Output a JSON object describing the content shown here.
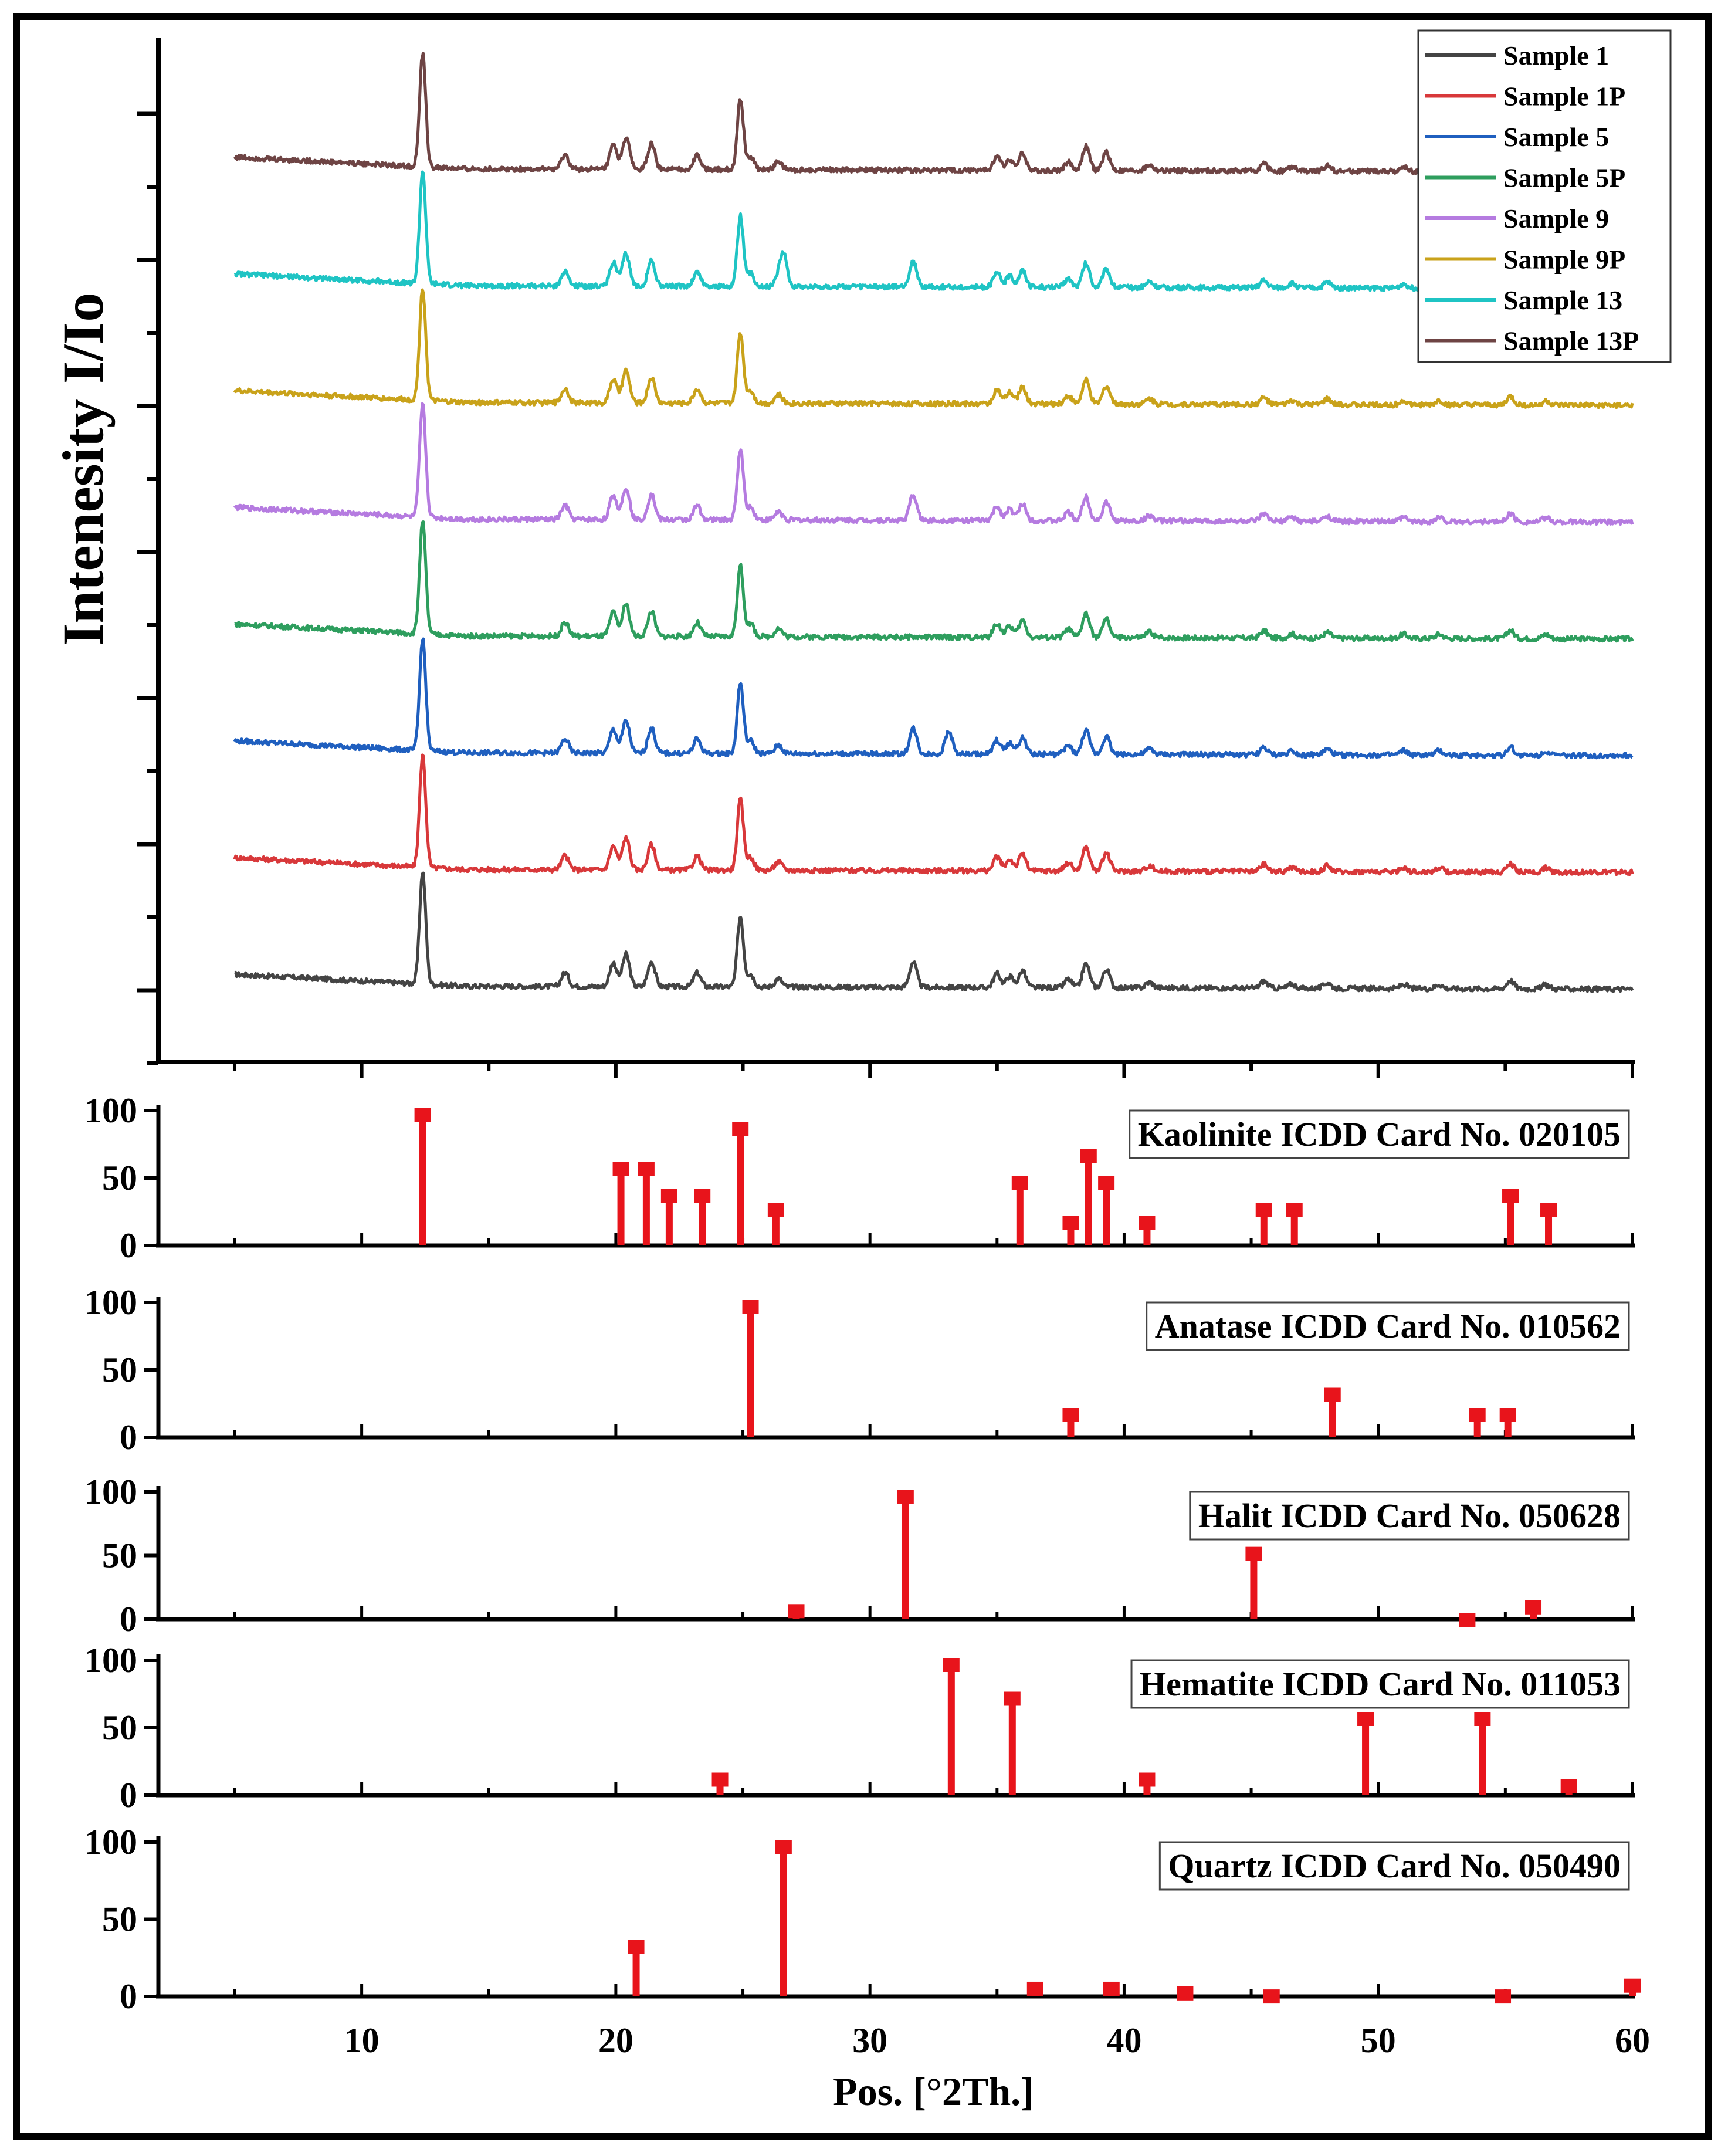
{
  "chart_data": [
    {
      "type": "line",
      "title": "",
      "ylabel": "Intenesity  I/Io",
      "xlabel": "",
      "xlim": [
        2,
        60
      ],
      "legend_position": "top-right",
      "peaks_common": [
        [
          12.4,
          8.0
        ],
        [
          18.0,
          1.0
        ],
        [
          19.9,
          1.7
        ],
        [
          20.4,
          2.3
        ],
        [
          21.4,
          1.8
        ],
        [
          23.2,
          1.0
        ],
        [
          24.9,
          5.0
        ],
        [
          25.3,
          0.9
        ],
        [
          26.4,
          0.6
        ],
        [
          35.0,
          1.0
        ],
        [
          35.5,
          0.8
        ],
        [
          36.0,
          1.2
        ],
        [
          37.8,
          0.6
        ],
        [
          38.5,
          1.7
        ],
        [
          39.3,
          1.3
        ],
        [
          41.0,
          0.4
        ],
        [
          45.5,
          0.5
        ],
        [
          46.6,
          0.3
        ],
        [
          48.0,
          0.4
        ],
        [
          51.0,
          0.3
        ],
        [
          52.4,
          0.3
        ],
        [
          55.2,
          0.6
        ],
        [
          56.6,
          0.3
        ]
      ],
      "series": [
        {
          "name": "Sample 1",
          "color": "#444444",
          "offset": 0,
          "x_end": 60,
          "extra_peaks": [
            [
              31.7,
              1.8
            ]
          ]
        },
        {
          "name": "Sample 1P",
          "color": "#d8383a",
          "offset": 1,
          "x_end": 60,
          "extra_peaks": []
        },
        {
          "name": "Sample 5",
          "color": "#1f5fbf",
          "offset": 2,
          "x_end": 60,
          "extra_peaks": [
            [
              31.7,
              1.8
            ],
            [
              33.1,
              1.6
            ]
          ]
        },
        {
          "name": "Sample 5P",
          "color": "#2e9e5e",
          "offset": 3,
          "x_end": 60,
          "extra_peaks": []
        },
        {
          "name": "Sample 9",
          "color": "#b57be0",
          "offset": 4,
          "x_end": 60,
          "extra_peaks": [
            [
              31.7,
              1.8
            ]
          ]
        },
        {
          "name": "Sample 9P",
          "color": "#c9a21a",
          "offset": 5,
          "x_end": 60,
          "extra_peaks": []
        },
        {
          "name": "Sample 13",
          "color": "#1fc4c4",
          "offset": 6,
          "x_end": 52,
          "extra_peaks": [
            [
              26.6,
              2.2
            ],
            [
              31.7,
              1.8
            ]
          ]
        },
        {
          "name": "Sample 13P",
          "color": "#6e4444",
          "offset": 7,
          "x_end": 52,
          "extra_peaks": []
        }
      ]
    },
    {
      "type": "bar",
      "title": "Kaolinite ICDD Card No. 020105",
      "x": [
        12.4,
        20.2,
        21.2,
        22.1,
        23.4,
        24.9,
        26.3,
        35.9,
        37.9,
        38.6,
        39.3,
        40.9,
        45.5,
        46.7,
        55.2,
        56.7
      ],
      "values": [
        100,
        60,
        60,
        40,
        40,
        90,
        30,
        50,
        20,
        70,
        50,
        20,
        30,
        30,
        40,
        30
      ],
      "ylim": [
        0,
        100
      ],
      "yticks": [
        "0",
        "50",
        "100"
      ]
    },
    {
      "type": "bar",
      "title": "Anatase ICDD Card No. 010562",
      "x": [
        25.3,
        37.9,
        48.2,
        53.9,
        55.1
      ],
      "values": [
        100,
        20,
        35,
        20,
        20
      ],
      "ylim": [
        0,
        100
      ],
      "yticks": [
        "0",
        "50",
        "100"
      ]
    },
    {
      "type": "bar",
      "title": "Halit ICDD Card No. 050628",
      "x": [
        27.1,
        31.4,
        45.1,
        53.5,
        56.1
      ],
      "values": [
        10,
        100,
        55,
        3,
        13
      ],
      "ylim": [
        0,
        100
      ],
      "yticks": [
        "0",
        "50",
        "100"
      ]
    },
    {
      "type": "bar",
      "title": "Hematite ICDD Card No. 011053",
      "x": [
        24.1,
        33.2,
        35.6,
        40.9,
        49.5,
        54.1,
        57.5
      ],
      "values": [
        15,
        100,
        75,
        15,
        60,
        60,
        10
      ],
      "ylim": [
        0,
        100
      ],
      "yticks": [
        "0",
        "50",
        "100"
      ]
    },
    {
      "type": "bar",
      "title": "Quartz ICDD Card No. 050490",
      "x": [
        20.8,
        26.6,
        36.5,
        39.5,
        42.4,
        45.8,
        54.9,
        60.0
      ],
      "values": [
        35,
        100,
        8,
        8,
        5,
        3,
        3,
        10
      ],
      "ylim": [
        0,
        100
      ],
      "yticks": [
        "0",
        "50",
        "100"
      ]
    }
  ],
  "x_axis": {
    "label": "Pos. [°2Th.]",
    "ticks": [
      "10",
      "20",
      "30",
      "40",
      "50",
      "60"
    ]
  },
  "colors": {
    "stick": "#e8141b",
    "axis": "#000000"
  }
}
